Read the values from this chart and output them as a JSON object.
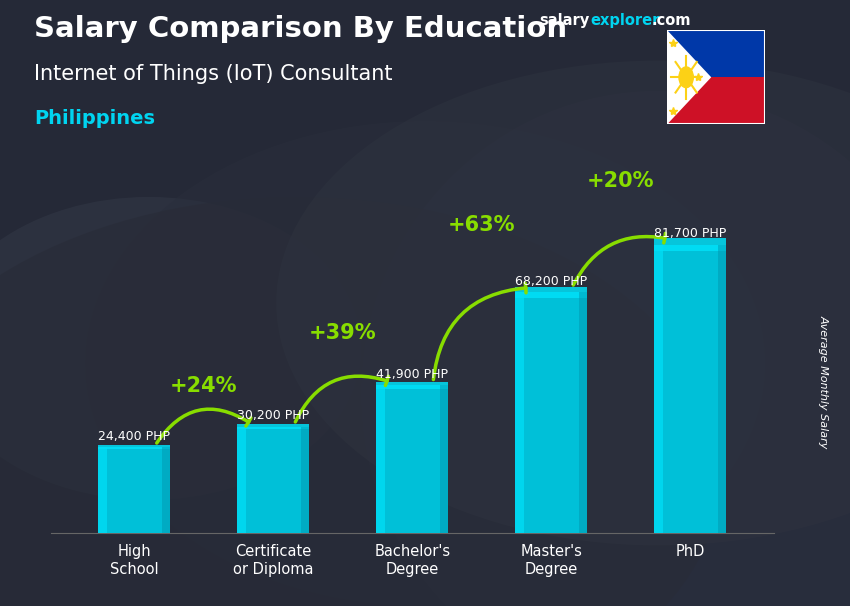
{
  "title_main": "Salary Comparison By Education",
  "subtitle": "Internet of Things (IoT) Consultant",
  "country": "Philippines",
  "ylabel": "Average Monthly Salary",
  "categories": [
    "High\nSchool",
    "Certificate\nor Diploma",
    "Bachelor's\nDegree",
    "Master's\nDegree",
    "PhD"
  ],
  "values": [
    24400,
    30200,
    41900,
    68200,
    81700
  ],
  "value_labels": [
    "24,400 PHP",
    "30,200 PHP",
    "41,900 PHP",
    "68,200 PHP",
    "81,700 PHP"
  ],
  "pct_labels": [
    "+24%",
    "+39%",
    "+63%",
    "+20%"
  ],
  "bar_color": "#00c0d8",
  "bar_color_light": "#00e0f8",
  "bar_color_dark": "#0098b0",
  "bg_color": "#3a3a3a",
  "overlay_color": "#2a2a3a",
  "title_color": "#ffffff",
  "subtitle_color": "#ffffff",
  "country_color": "#00d4f0",
  "value_label_color": "#ffffff",
  "pct_color": "#88dd00",
  "arrow_color": "#88dd00",
  "site_salary_color": "#ffffff",
  "site_explorer_color": "#00d4f0",
  "figsize": [
    8.5,
    6.06
  ],
  "dpi": 100
}
